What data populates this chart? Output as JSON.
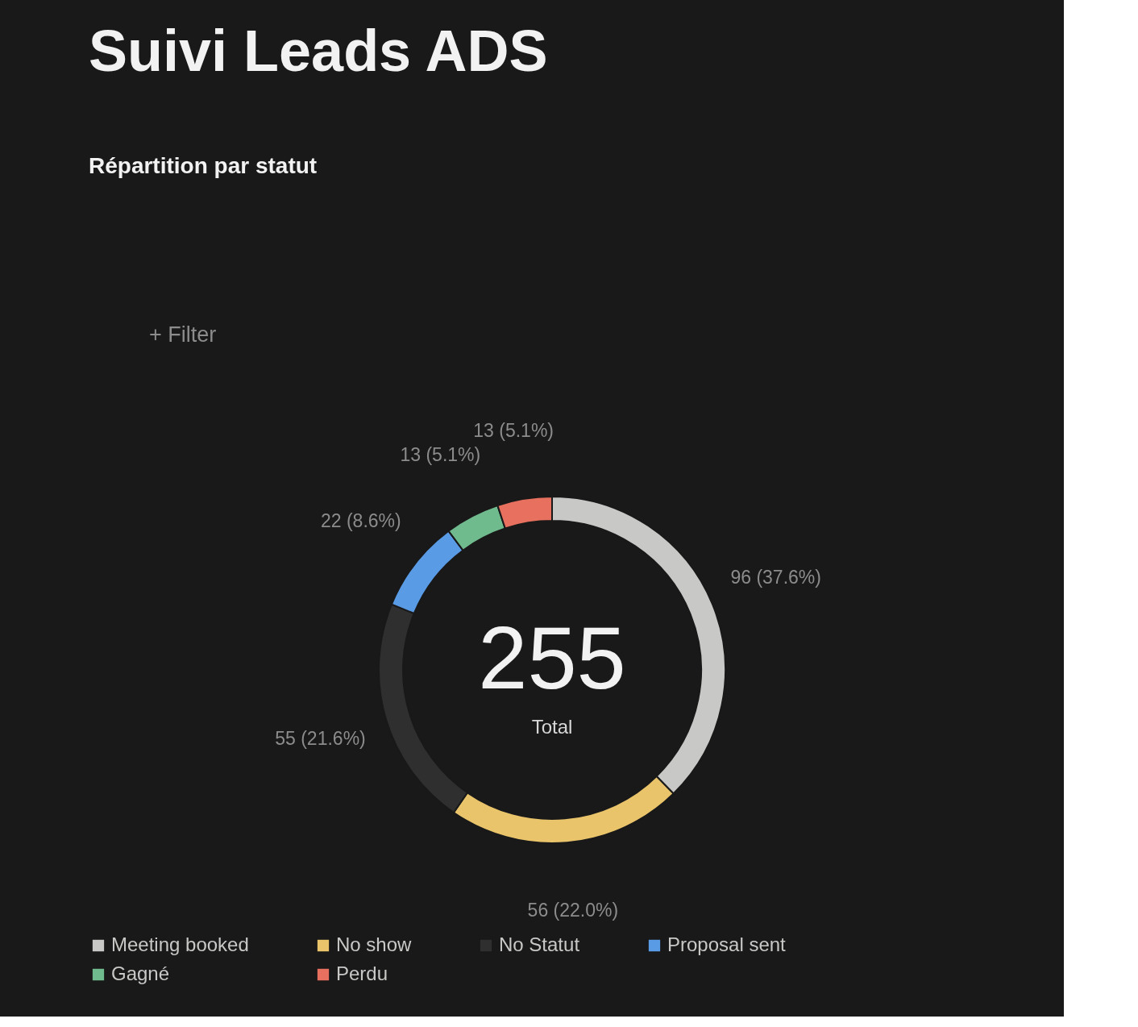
{
  "chart_data": {
    "type": "donut",
    "title": "Suivi Leads ADS",
    "subtitle": "Répartition par statut",
    "categories": [
      "Meeting booked",
      "No show",
      "No Statut",
      "Proposal sent",
      "Gagné",
      "Perdu"
    ],
    "values": [
      96,
      56,
      55,
      22,
      13,
      13
    ],
    "colors": [
      "#c8c8c6",
      "#e9c46a",
      "#2f2f2f",
      "#5a9be6",
      "#6fbb8e",
      "#e8705f"
    ],
    "value_labels": [
      "96 (37.6%)",
      "56 (22.0%)",
      "55 (21.6%)",
      "22 (8.6%)",
      "13 (5.1%)",
      "13 (5.1%)"
    ],
    "annotations": [
      "255",
      "Total",
      "+ Filter"
    ],
    "legend": "bottom"
  }
}
